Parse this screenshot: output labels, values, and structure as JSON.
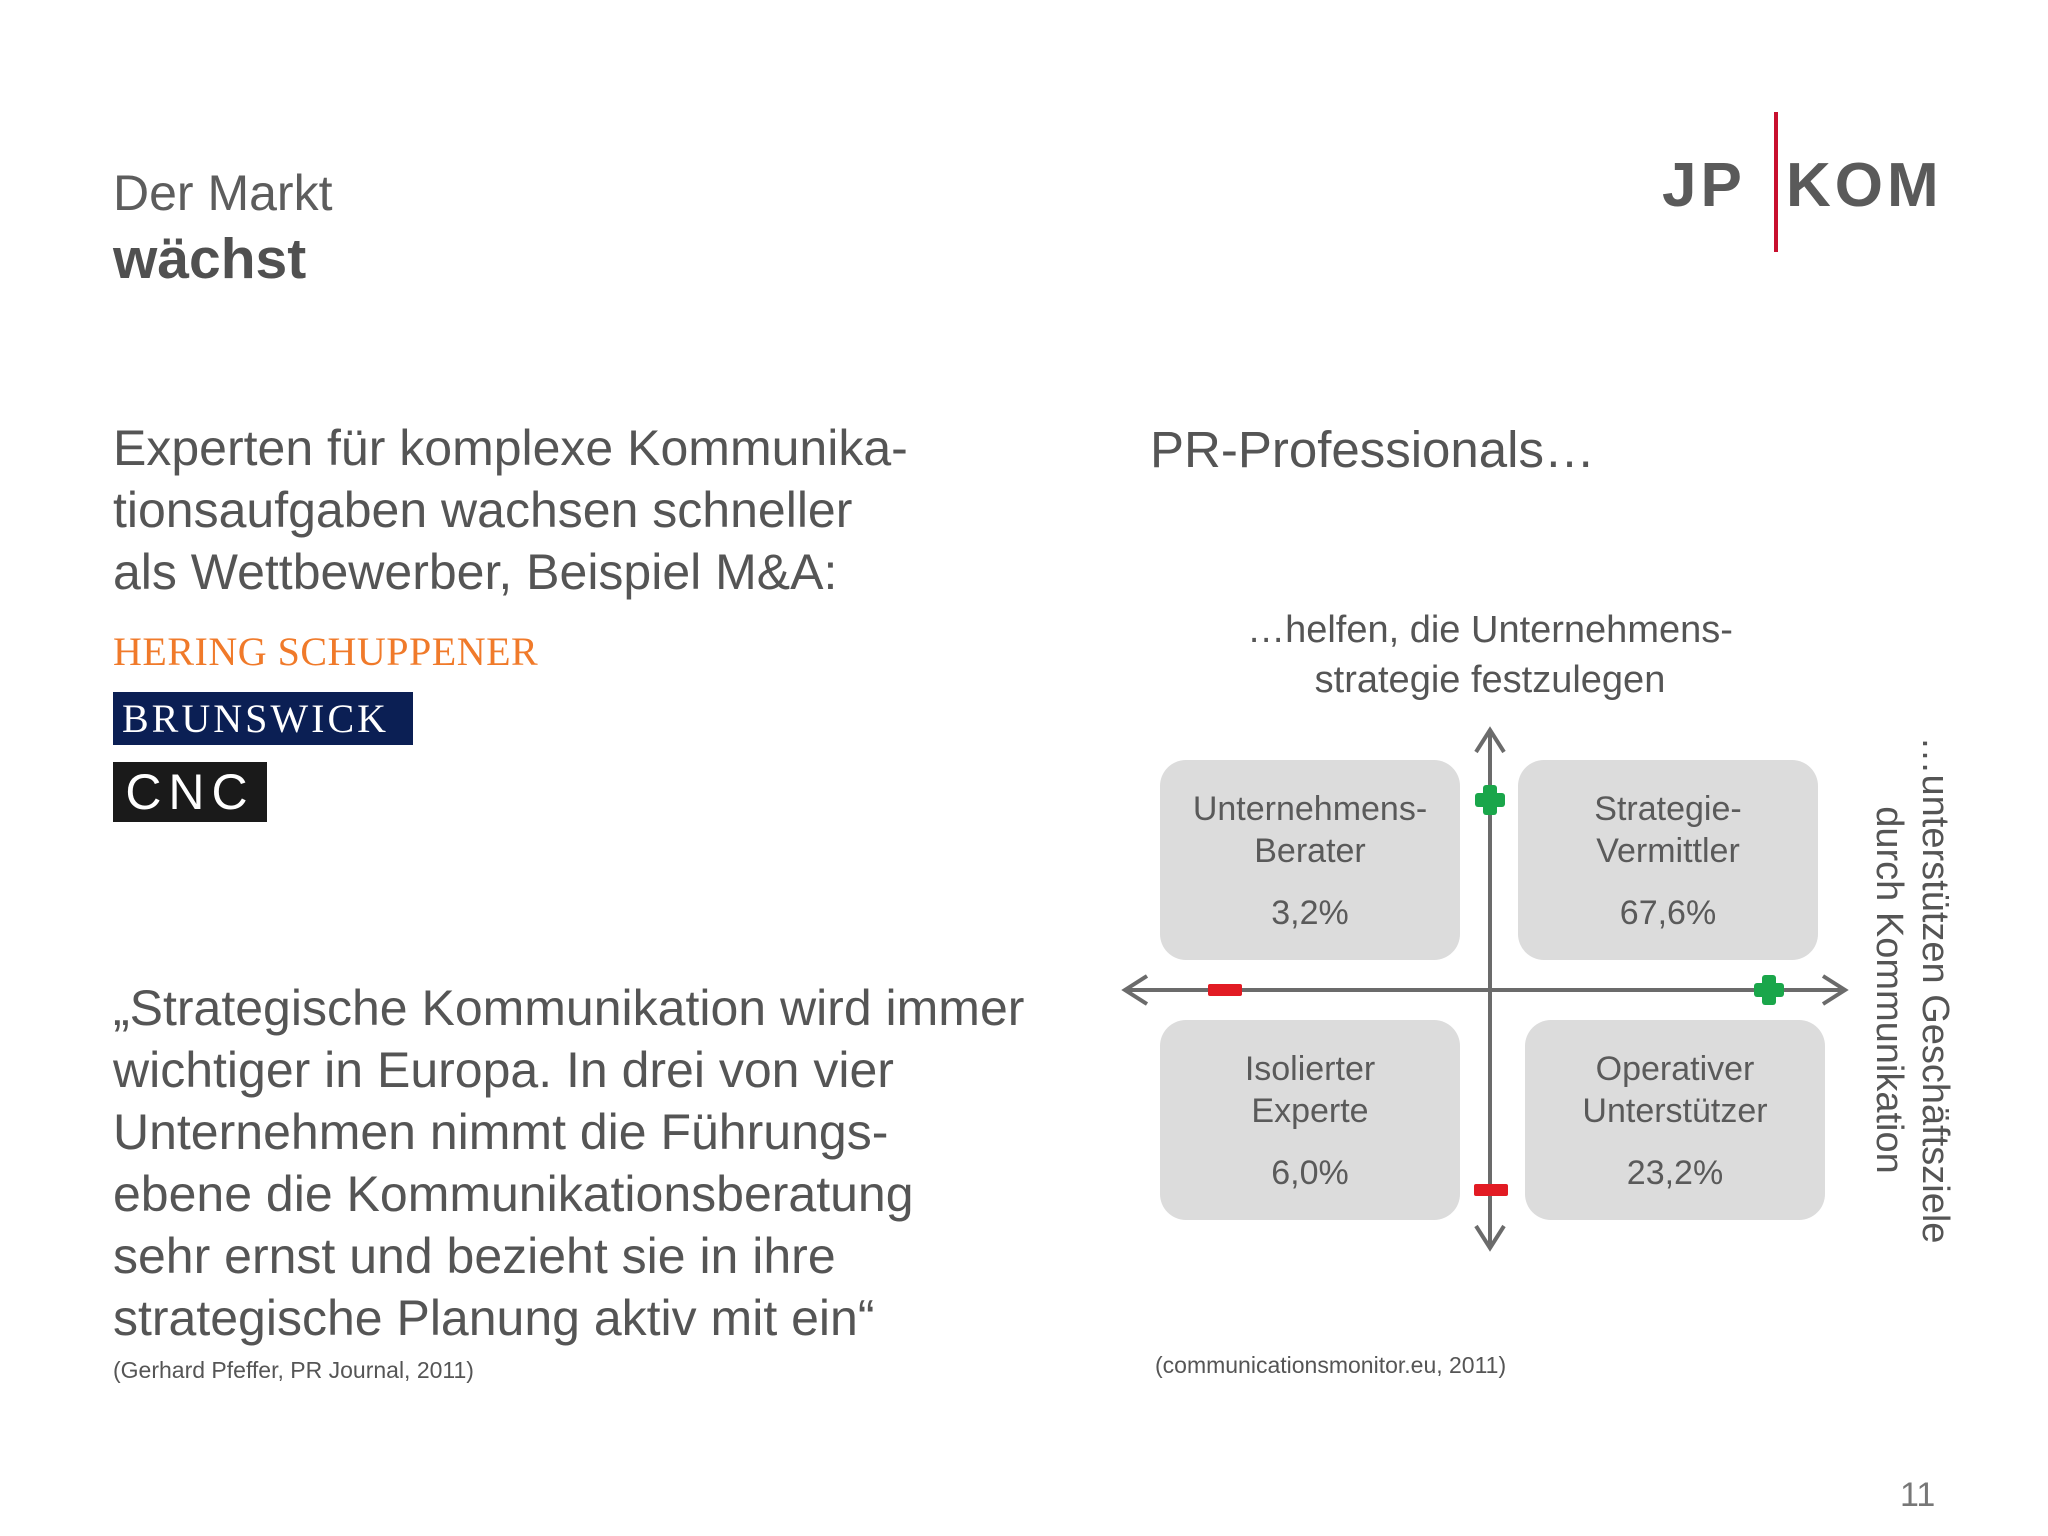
{
  "header": {
    "title_line1": "Der Markt",
    "title_line2": "wächst"
  },
  "logo": {
    "left": "JP",
    "right": "KOM",
    "accent_color": "#c8102e"
  },
  "intro": {
    "lines": [
      "Experten für komplexe Kommunika-",
      "tionsaufgaben wachsen schneller",
      "als Wettbewerber, Beispiel M&A:"
    ]
  },
  "brands": [
    {
      "name": "HERING SCHUPPENER",
      "color": "#f07a2a"
    },
    {
      "name": "BRUNSWICK",
      "color": "#0b1f54"
    },
    {
      "name": "CNC",
      "color": "#1a1a1a"
    }
  ],
  "quote": {
    "lines": [
      "„Strategische Kommunikation wird immer",
      "wichtiger in Europa. In drei von vier",
      "Unternehmen nimmt die Führungs-",
      "ebene die Kommunikationsberatung",
      "sehr ernst und bezieht sie in ihre",
      "strategische Planung aktiv mit ein“"
    ],
    "source": "(Gerhard Pfeffer, PR Journal, 2011)"
  },
  "diagram": {
    "title": "PR-Professionals…",
    "top_label_lines": [
      "…helfen, die Unternehmens-",
      "strategie festzulegen"
    ],
    "right_label_lines": [
      "…unterstützen Geschäftsziele",
      "durch Kommunikation"
    ],
    "quadrants": [
      {
        "position": "top-left",
        "label_lines": [
          "Unternehmens-",
          "Berater"
        ],
        "value": "3,2%"
      },
      {
        "position": "top-right",
        "label_lines": [
          "Strategie-",
          "Vermittler"
        ],
        "value": "67,6%"
      },
      {
        "position": "bottom-left",
        "label_lines": [
          "Isolierter",
          "Experte"
        ],
        "value": "6,0%"
      },
      {
        "position": "bottom-right",
        "label_lines": [
          "Operativer",
          "Unterstützer"
        ],
        "value": "23,2%"
      }
    ],
    "plus_color": "#1aa64a",
    "minus_color": "#e21b23",
    "source": "(communicationsmonitor.eu, 2011)"
  },
  "page_number": "11"
}
